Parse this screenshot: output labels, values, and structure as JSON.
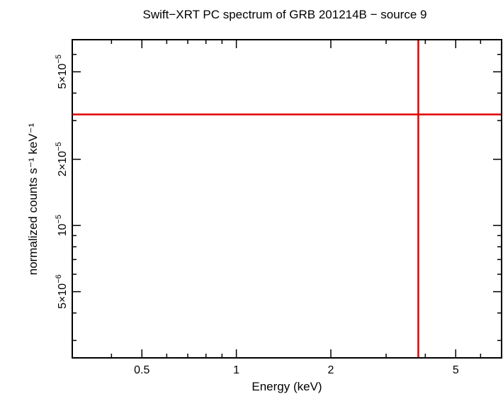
{
  "chart_data": {
    "type": "scatter",
    "title": "Swift−XRT PC spectrum of GRB 201214B − source 9",
    "xlabel": "Energy (keV)",
    "ylabel": "normalized counts s⁻¹ keV⁻¹",
    "x_scale": "log",
    "y_scale": "log",
    "xlim": [
      0.3,
      7.0
    ],
    "ylim": [
      2.5e-06,
      7e-05
    ],
    "grid": false,
    "x_ticks": [
      {
        "value": 0.5,
        "label": "0.5"
      },
      {
        "value": 1,
        "label": "1"
      },
      {
        "value": 2,
        "label": "2"
      },
      {
        "value": 5,
        "label": "5"
      }
    ],
    "y_ticks": [
      {
        "value": 5e-06,
        "mant": "5×10",
        "exp": "−6"
      },
      {
        "value": 1e-05,
        "mant": "10",
        "exp": "−5"
      },
      {
        "value": 2e-05,
        "mant": "2×10",
        "exp": "−5"
      },
      {
        "value": 5e-05,
        "mant": "5×10",
        "exp": "−5"
      }
    ],
    "series": [
      {
        "color": "#e00000",
        "points": [
          {
            "x": 3.8,
            "xerr": [
              0.3,
              7.0
            ],
            "y": 3.2e-05,
            "yerr": [
              2.5e-06,
              7e-05
            ]
          }
        ]
      }
    ]
  }
}
